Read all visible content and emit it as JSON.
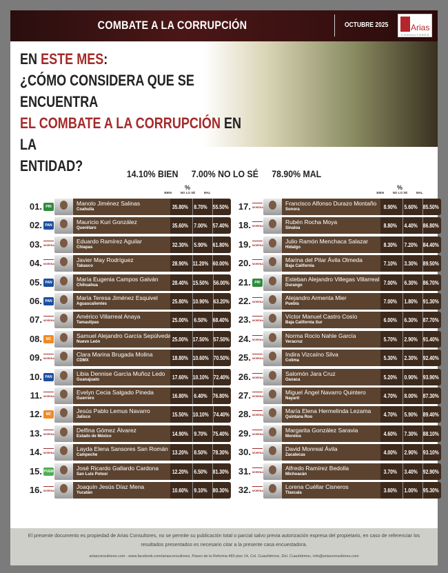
{
  "header": {
    "title": "COMBATE A LA CORRUPCIÓN",
    "date": "OCTUBRE 2025",
    "logo_text": "Arias",
    "logo_sub": "CONSULTORES"
  },
  "question": {
    "l1a": "EN ",
    "l1b": "ESTE MES",
    ":": ":",
    "l2": "¿CÓMO CONSIDERA QUE SE ENCUENTRA",
    "l3a": "EL COMBATE A LA CORRUPCIÓN",
    "l3b": " EN LA",
    "l4": "ENTIDAD?"
  },
  "summary": {
    "bien": "14.10% BIEN",
    "nolose": "7.00% NO LO SÉ",
    "mal": "78.90% MAL"
  },
  "columns": {
    "pct": "%",
    "bien": "BIEN",
    "nolose": "NO LO SÉ",
    "mal": "MAL"
  },
  "party_colors": {
    "PRI": "#2e8b3e",
    "PAN": "#1c4fa0",
    "MORENA": "#a52a2a",
    "MC": "#f08a24",
    "PVEM": "#4caf50"
  },
  "rows": [
    [
      "01.",
      "PRI",
      "Manolo Jiménez Salinas",
      "Coahuila",
      "35.80%",
      "8.70%",
      "55.50%"
    ],
    [
      "02.",
      "PAN",
      "Mauricio Kuri González",
      "Querétaro",
      "35.60%",
      "7.00%",
      "57.40%"
    ],
    [
      "03.",
      "MORENA",
      "Eduardo Ramírez Aguilar",
      "Chiapas",
      "32.30%",
      "5.90%",
      "61.80%"
    ],
    [
      "04.",
      "MORENA",
      "Javier May Rodríguez",
      "Tabasco",
      "28.90%",
      "11.20%",
      "60.00%"
    ],
    [
      "05.",
      "PAN",
      "María Eugenia Campos Galván",
      "Chihuahua",
      "28.40%",
      "15.50%",
      "56.00%"
    ],
    [
      "06.",
      "PAN",
      "María Teresa Jiménez Esquivel",
      "Aguascalientes",
      "25.80%",
      "10.90%",
      "63.20%"
    ],
    [
      "07.",
      "MORENA",
      "Américo Villarreal Anaya",
      "Tamaulipas",
      "25.00%",
      "6.50%",
      "68.40%"
    ],
    [
      "08.",
      "MC",
      "Samuel Alejandro García Sepúlveda",
      "Nuevo León",
      "25.00%",
      "17.50%",
      "57.50%"
    ],
    [
      "09.",
      "MORENA",
      "Clara Marina Brugada Molina",
      "CDMX",
      "18.80%",
      "10.60%",
      "70.50%"
    ],
    [
      "10.",
      "PAN",
      "Libia Dennise García Muñoz Ledo",
      "Guanajuato",
      "17.60%",
      "10.10%",
      "72.40%"
    ],
    [
      "11.",
      "MORENA",
      "Evelyn Cecia Salgado Pineda",
      "Guerrero",
      "16.80%",
      "6.40%",
      "76.80%"
    ],
    [
      "12.",
      "MC",
      "Jesús Pablo Lemus Navarro",
      "Jalisco",
      "15.50%",
      "10.10%",
      "74.40%"
    ],
    [
      "13.",
      "MORENA",
      "Delfina Gómez Álvarez",
      "Estado de México",
      "14.90%",
      "9.70%",
      "75.40%"
    ],
    [
      "14.",
      "MORENA",
      "Layda Elena Sansores San Román",
      "Campeche",
      "13.20%",
      "8.50%",
      "78.30%"
    ],
    [
      "15.",
      "PVEM",
      "José Ricardo Gallardo Cardona",
      "San Luis Potosí",
      "12.20%",
      "6.50%",
      "81.30%"
    ],
    [
      "16.",
      "MORENA",
      "Joaquín Jesús Díaz Mena",
      "Yucatán",
      "10.60%",
      "9.10%",
      "80.30%"
    ],
    [
      "17.",
      "MORENA",
      "Francisco Alfonso Durazo Montaño",
      "Sonora",
      "8.90%",
      "5.60%",
      "85.50%"
    ],
    [
      "18.",
      "MORENA",
      "Rubén Rocha Moya",
      "Sinaloa",
      "8.80%",
      "4.40%",
      "86.80%"
    ],
    [
      "19.",
      "MORENA",
      "Julio Ramón Menchaca Salazar",
      "Hidalgo",
      "8.30%",
      "7.20%",
      "84.40%"
    ],
    [
      "20.",
      "MORENA",
      "Marina del Pilar Ávila Olmeda",
      "Baja California",
      "7.10%",
      "3.30%",
      "89.50%"
    ],
    [
      "21.",
      "PRI",
      "Esteban Alejandro Villegas Villarreal",
      "Durango",
      "7.00%",
      "6.30%",
      "86.70%"
    ],
    [
      "22.",
      "MORENA",
      "Alejandro Armenta Mier",
      "Puebla",
      "7.00%",
      "1.80%",
      "91.30%"
    ],
    [
      "23.",
      "MORENA",
      "Víctor Manuel Castro Cosío",
      "Baja California Sur",
      "6.00%",
      "6.30%",
      "87.70%"
    ],
    [
      "24.",
      "MORENA",
      "Norma Rocío Nahle García",
      "Veracruz",
      "5.70%",
      "2.90%",
      "91.40%"
    ],
    [
      "25.",
      "MORENA",
      "Indira Vizcaíno Silva",
      "Colima",
      "5.30%",
      "2.30%",
      "92.40%"
    ],
    [
      "26.",
      "MORENA",
      "Salomón Jara Cruz",
      "Oaxaca",
      "5.20%",
      "0.90%",
      "93.90%"
    ],
    [
      "27.",
      "MORENA",
      "Miguel Ángel Navarro Quintero",
      "Nayarit",
      "4.70%",
      "8.00%",
      "87.30%"
    ],
    [
      "28.",
      "MORENA",
      "María Elena Hermelinda Lezama",
      "Quintana Roo",
      "4.70%",
      "5.90%",
      "89.40%"
    ],
    [
      "29.",
      "MORENA",
      "Margarita González Saravia",
      "Morelos",
      "4.60%",
      "7.30%",
      "88.10%"
    ],
    [
      "30.",
      "MORENA",
      "David Monreal Ávila",
      "Zacatecas",
      "4.00%",
      "2.90%",
      "93.10%"
    ],
    [
      "31.",
      "MORENA",
      "Alfredo Ramírez Bedolla",
      "Michoacán",
      "3.70%",
      "3.40%",
      "92.90%"
    ],
    [
      "32.",
      "MORENA",
      "Lorena Cuéllar Cisneros",
      "Tlaxcala",
      "3.60%",
      "1.00%",
      "95.30%"
    ]
  ],
  "footer": {
    "disclaimer": "El presente documento es propiedad de Arias Consultores, no se permite su publicación total o parcial salvo previa autorización expresa del propietario, en caso de referenciar los resultados presentados es necesario citar a la presente casa encuestadora.",
    "contact": "ariasconsultores.com - www.facebook.com/ariasconsultores, Paseo de la Reforma 483 piso 14, Col. Cuauhtémoc, Del. Cuauhtémoc, info@ariasconsultores.com"
  }
}
